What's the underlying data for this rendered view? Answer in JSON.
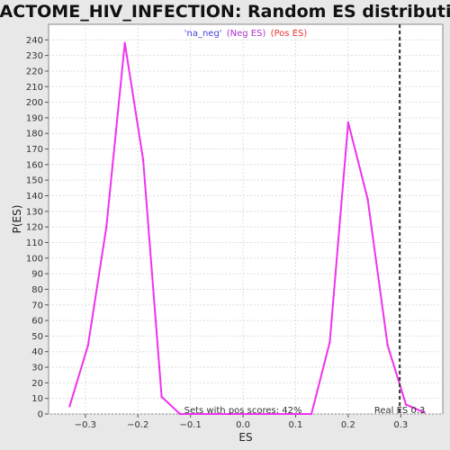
{
  "chart_data": {
    "type": "line",
    "title": "REACTOME_HIV_INFECTION: Random ES distribution",
    "xlabel": "ES",
    "ylabel": "P(ES)",
    "xlim": [
      -0.37,
      0.38
    ],
    "ylim": [
      0,
      250
    ],
    "x_ticks": [
      -0.3,
      -0.2,
      -0.1,
      0.0,
      0.1,
      0.2,
      0.3
    ],
    "x_tick_labels": [
      "−0.3",
      "−0.2",
      "−0.1",
      "0.0",
      "0.1",
      "0.2",
      "0.3"
    ],
    "y_ticks": [
      0,
      10,
      20,
      30,
      40,
      50,
      60,
      70,
      80,
      90,
      100,
      110,
      120,
      130,
      140,
      150,
      160,
      170,
      180,
      190,
      200,
      210,
      220,
      230,
      240
    ],
    "grid": true,
    "legend": {
      "placement": "top-center",
      "entries": [
        {
          "label": "'na_neg'",
          "color": "#4444dd"
        },
        {
          "label": "(Neg ES)",
          "color": "#aa33cc"
        },
        {
          "label": "(Pos ES)",
          "color": "#ee3333"
        }
      ]
    },
    "series": [
      {
        "color": "#ee33ee",
        "points": [
          [
            -0.33,
            5
          ],
          [
            -0.295,
            44
          ],
          [
            -0.26,
            120
          ],
          [
            -0.225,
            238
          ],
          [
            -0.19,
            163
          ],
          [
            -0.155,
            11
          ],
          [
            -0.12,
            0
          ],
          [
            0.13,
            0
          ],
          [
            0.165,
            46
          ],
          [
            0.2,
            187
          ],
          [
            0.237,
            138
          ],
          [
            0.275,
            44
          ],
          [
            0.31,
            6
          ],
          [
            0.345,
            1
          ]
        ]
      }
    ],
    "reference_line": {
      "x": 0.298,
      "label": "Real ES 0.3",
      "style": "dashed",
      "color": "#333333"
    },
    "annotations": {
      "pos_scores": "Sets with pos scores: 42%"
    }
  }
}
